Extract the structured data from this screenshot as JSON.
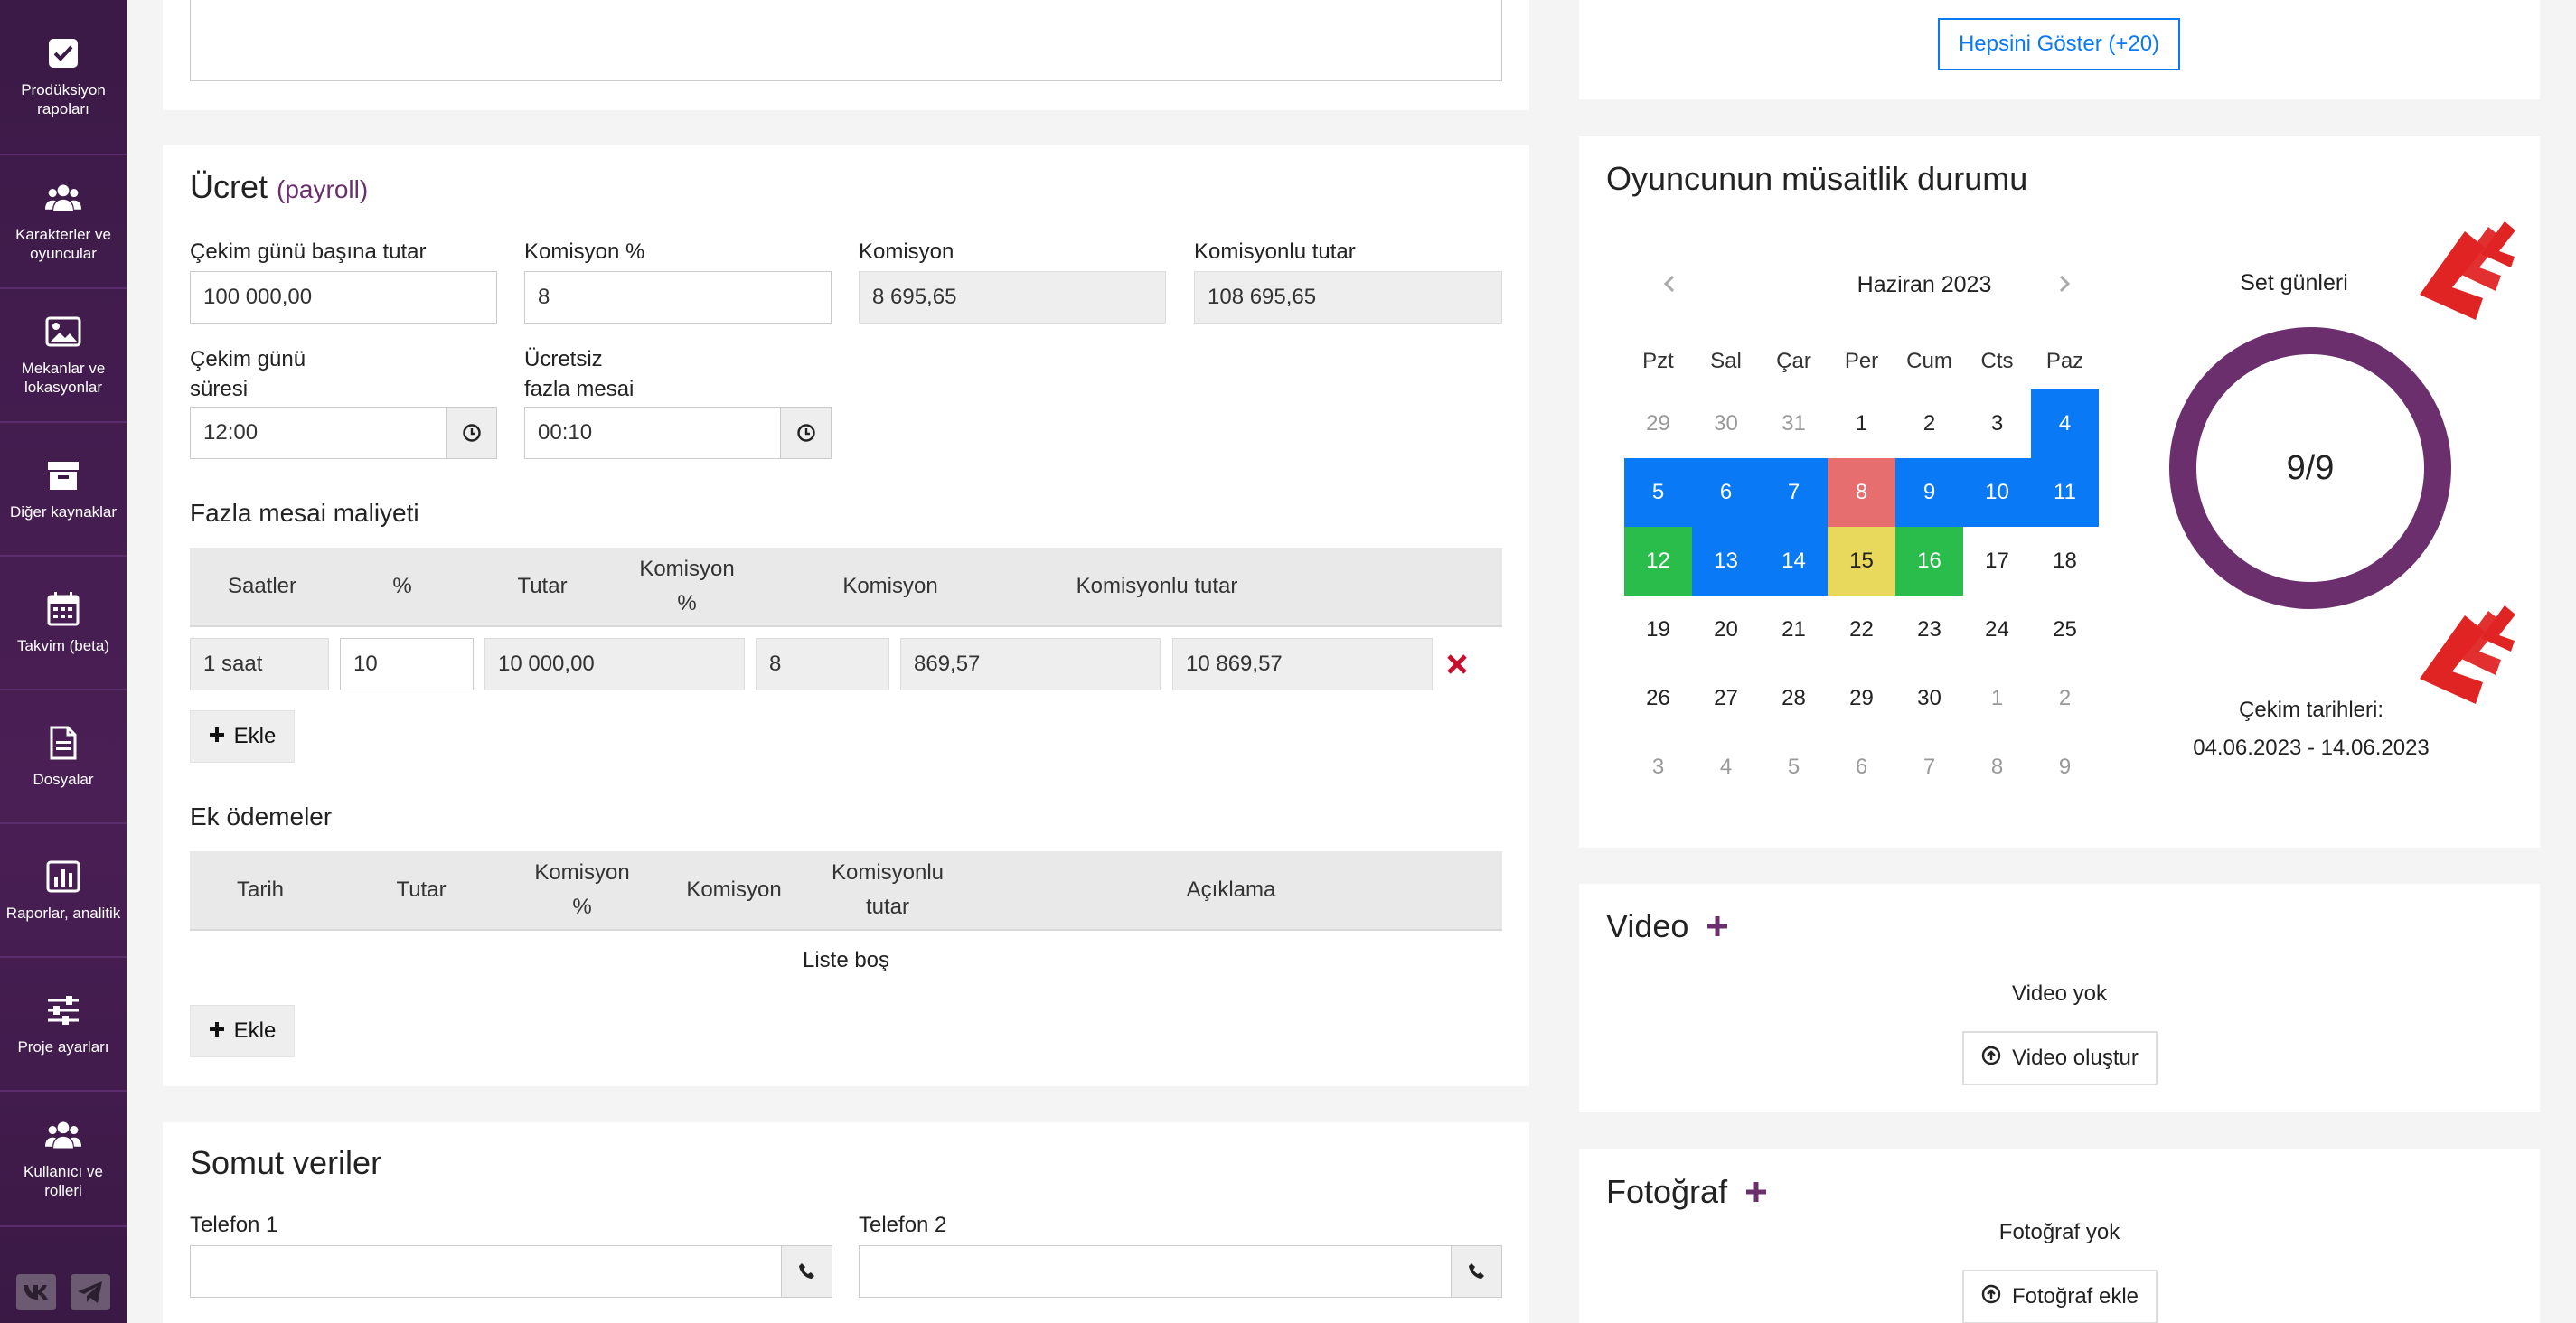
{
  "sidebar": {
    "items": [
      {
        "label": "Prodüksiyon rapoları",
        "icon": "checkbox-icon"
      },
      {
        "label": "Karakterler ve oyuncular",
        "icon": "users-icon"
      },
      {
        "label": "Mekanlar ve lokasyonlar",
        "icon": "image-icon"
      },
      {
        "label": "Diğer kaynaklar",
        "icon": "archive-icon"
      },
      {
        "label": "Takvim (beta)",
        "icon": "calendar-icon"
      },
      {
        "label": "Dosyalar",
        "icon": "document-icon"
      },
      {
        "label": "Raporlar, analitik",
        "icon": "chart-icon"
      },
      {
        "label": "Proje ayarları",
        "icon": "sliders-icon"
      },
      {
        "label": "Kullanıcı ve rolleri",
        "icon": "users-icon"
      }
    ]
  },
  "payroll": {
    "title": "Ücret",
    "subtitle": "(payroll)",
    "per_day_label": "Çekim günü başına tutar",
    "per_day_value": "100 000,00",
    "commission_pct_label": "Komisyon %",
    "commission_pct_value": "8",
    "commission_label": "Komisyon",
    "commission_value": "8 695,65",
    "with_commission_label": "Komisyonlu tutar",
    "with_commission_value": "108 695,65",
    "duration_label_1": "Çekim günü",
    "duration_label_2": "süresi",
    "duration_value": "12:00",
    "free_overtime_label_1": "Ücretsiz",
    "free_overtime_label_2": "fazla mesai",
    "free_overtime_value": "00:10"
  },
  "overtime": {
    "title": "Fazla mesai maliyeti",
    "headers": [
      "Saatler",
      "%",
      "Tutar",
      "Komisyon",
      "%",
      "Komisyon",
      "Komisyonlu tutar"
    ],
    "row": {
      "hours": "1 saat",
      "pct": "10",
      "amount": "10 000,00",
      "commission_pct": "8",
      "commission": "869,57",
      "total": "10 869,57"
    },
    "add_label": "Ekle"
  },
  "extra": {
    "title": "Ek ödemeler",
    "headers": [
      "Tarih",
      "Tutar",
      "Komisyon",
      "%",
      "Komisyon",
      "Komisyonlu",
      "tutar",
      "Açıklama"
    ],
    "empty": "Liste boş",
    "add_label": "Ekle"
  },
  "contact": {
    "title": "Somut veriler",
    "phone1_label": "Telefon 1",
    "phone2_label": "Telefon 2"
  },
  "show_all": "Hepsini Göster (+20)",
  "availability": {
    "title": "Oyuncunun müsaitlik durumu",
    "month": "Haziran 2023",
    "weekdays": [
      "Pzt",
      "Sal",
      "Çar",
      "Per",
      "Cum",
      "Cts",
      "Paz"
    ],
    "weeks": [
      [
        "29",
        "30",
        "31",
        "1",
        "2",
        "3",
        "4"
      ],
      [
        "5",
        "6",
        "7",
        "8",
        "9",
        "10",
        "11"
      ],
      [
        "12",
        "13",
        "14",
        "15",
        "16",
        "17",
        "18"
      ],
      [
        "19",
        "20",
        "21",
        "22",
        "23",
        "24",
        "25"
      ],
      [
        "26",
        "27",
        "28",
        "29",
        "30",
        "1",
        "2"
      ],
      [
        "3",
        "4",
        "5",
        "6",
        "7",
        "8",
        "9"
      ]
    ],
    "set_days_label": "Set günleri",
    "set_days_value": "9/9",
    "shoot_dates_label": "Çekim tarihleri:",
    "shoot_dates_value": "04.06.2023 - 14.06.2023",
    "colors": {
      "blue": "#0a79f6",
      "red": "#e66e6e",
      "green": "#2bbd4c",
      "yellow": "#e8d95c",
      "ring": "#6b2f6e"
    }
  },
  "video": {
    "title": "Video",
    "empty": "Video yok",
    "button": "Video oluştur"
  },
  "photo": {
    "title": "Fotoğraf",
    "empty": "Fotoğraf yok",
    "button": "Fotoğraf ekle"
  }
}
